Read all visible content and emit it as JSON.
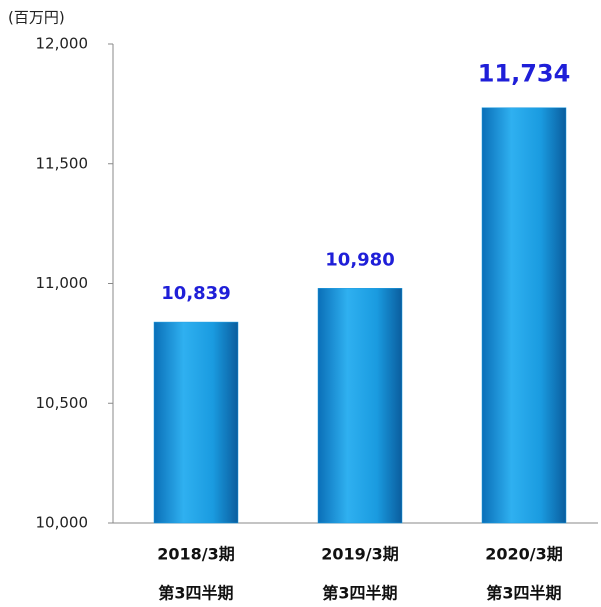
{
  "chart_data": {
    "type": "bar",
    "unit": "(百万円)",
    "categories": [
      [
        "2018/3期",
        "第3四半期"
      ],
      [
        "2019/3期",
        "第3四半期"
      ],
      [
        "2020/3期",
        "第3四半期"
      ]
    ],
    "values": [
      10839,
      10980,
      11734
    ],
    "value_labels": [
      "10,839",
      "10,980",
      "11,734"
    ],
    "color": "#1a9be0",
    "ylim": [
      10000,
      12000
    ],
    "yticks": [
      {
        "value": 10000,
        "label": "10,000"
      },
      {
        "value": 10500,
        "label": "10,500"
      },
      {
        "value": 11000,
        "label": "11,000"
      },
      {
        "value": 11500,
        "label": "11,500"
      },
      {
        "value": 12000,
        "label": "12,000"
      }
    ],
    "grid": false
  }
}
